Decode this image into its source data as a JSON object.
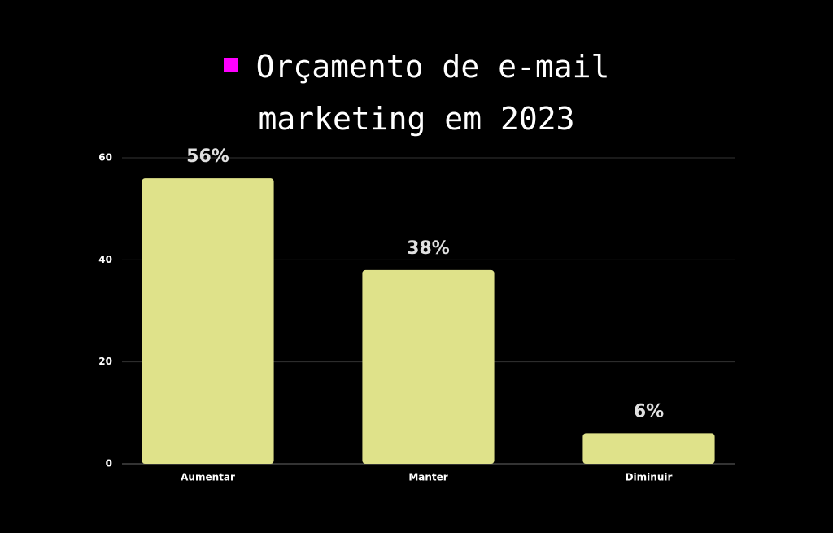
{
  "chart_data": {
    "type": "bar",
    "title": "Orçamento de e-mail marketing em 2023",
    "categories": [
      "Aumentar",
      "Manter",
      "Diminuir"
    ],
    "values": [
      56,
      38,
      6
    ],
    "value_labels": [
      "56%",
      "38%",
      "6%"
    ],
    "color": "#dfe28a",
    "ylim": [
      0,
      60
    ],
    "yticks": [
      0,
      20,
      40,
      60
    ],
    "grid": true
  }
}
